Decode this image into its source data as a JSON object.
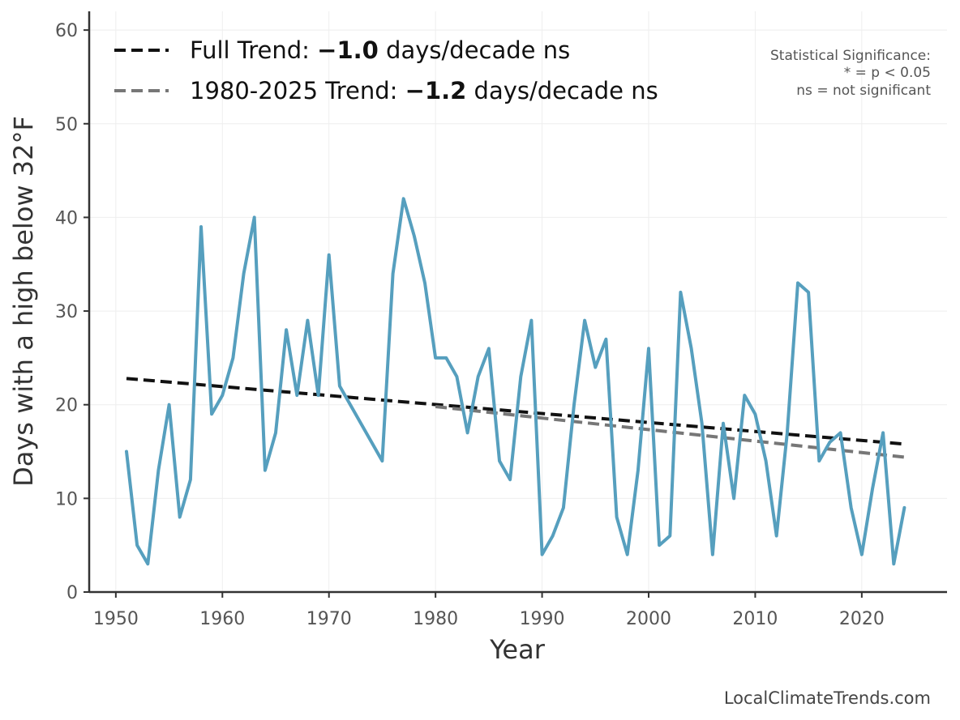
{
  "chart_data": {
    "type": "line",
    "xlabel": "Year",
    "ylabel": "Days with a high below 32°F",
    "xlim": [
      1947.5,
      2028
    ],
    "ylim": [
      0,
      62
    ],
    "xticks": [
      1950,
      1960,
      1970,
      1980,
      1990,
      2000,
      2010,
      2020
    ],
    "yticks": [
      0,
      10,
      20,
      30,
      40,
      50,
      60
    ],
    "grid": true,
    "legend_position": "top-left",
    "series": [
      {
        "color": "#569fbe",
        "x": [
          1951,
          1952,
          1953,
          1954,
          1955,
          1956,
          1957,
          1958,
          1959,
          1960,
          1961,
          1962,
          1963,
          1964,
          1965,
          1966,
          1967,
          1968,
          1969,
          1970,
          1971,
          1975,
          1976,
          1977,
          1978,
          1979,
          1980,
          1981,
          1982,
          1983,
          1984,
          1985,
          1986,
          1987,
          1988,
          1989,
          1990,
          1991,
          1992,
          1993,
          1994,
          1995,
          1996,
          1997,
          1998,
          1999,
          2000,
          2001,
          2002,
          2003,
          2004,
          2005,
          2006,
          2007,
          2008,
          2009,
          2010,
          2011,
          2012,
          2013,
          2014,
          2015,
          2016,
          2017,
          2018,
          2019,
          2020,
          2021,
          2022,
          2023,
          2024
        ],
        "values": [
          15,
          5,
          3,
          13,
          20,
          8,
          12,
          39,
          19,
          21,
          25,
          34,
          40,
          13,
          17,
          28,
          21,
          29,
          21,
          36,
          22,
          14,
          34,
          42,
          38,
          33,
          25,
          25,
          23,
          17,
          23,
          26,
          14,
          12,
          23,
          29,
          4,
          6,
          9,
          20,
          29,
          24,
          27,
          8,
          4,
          13,
          26,
          5,
          6,
          32,
          26,
          18,
          4,
          18,
          10,
          21,
          19,
          14,
          6,
          17,
          33,
          32,
          14,
          16,
          17,
          9,
          4,
          11,
          17,
          3,
          9
        ]
      }
    ],
    "trend_lines": [
      {
        "name": "Full Trend",
        "color": "#111111",
        "x": [
          1951,
          2024
        ],
        "values": [
          22.8,
          15.8
        ]
      },
      {
        "name": "1980-2025 Trend",
        "color": "#777777",
        "x": [
          1980,
          2024
        ],
        "values": [
          19.8,
          14.4
        ]
      }
    ]
  },
  "legend": {
    "items": [
      {
        "prefix": "Full Trend: ",
        "value": "−1.0",
        "suffix": " days/decade ns",
        "color": "#111111"
      },
      {
        "prefix": "1980-2025 Trend: ",
        "value": "−1.2",
        "suffix": " days/decade ns",
        "color": "#777777"
      }
    ]
  },
  "significance_note": {
    "line1": "Statistical Significance:",
    "line2": "* = p < 0.05",
    "line3": "ns = not significant"
  },
  "source": "LocalClimateTrends.com"
}
